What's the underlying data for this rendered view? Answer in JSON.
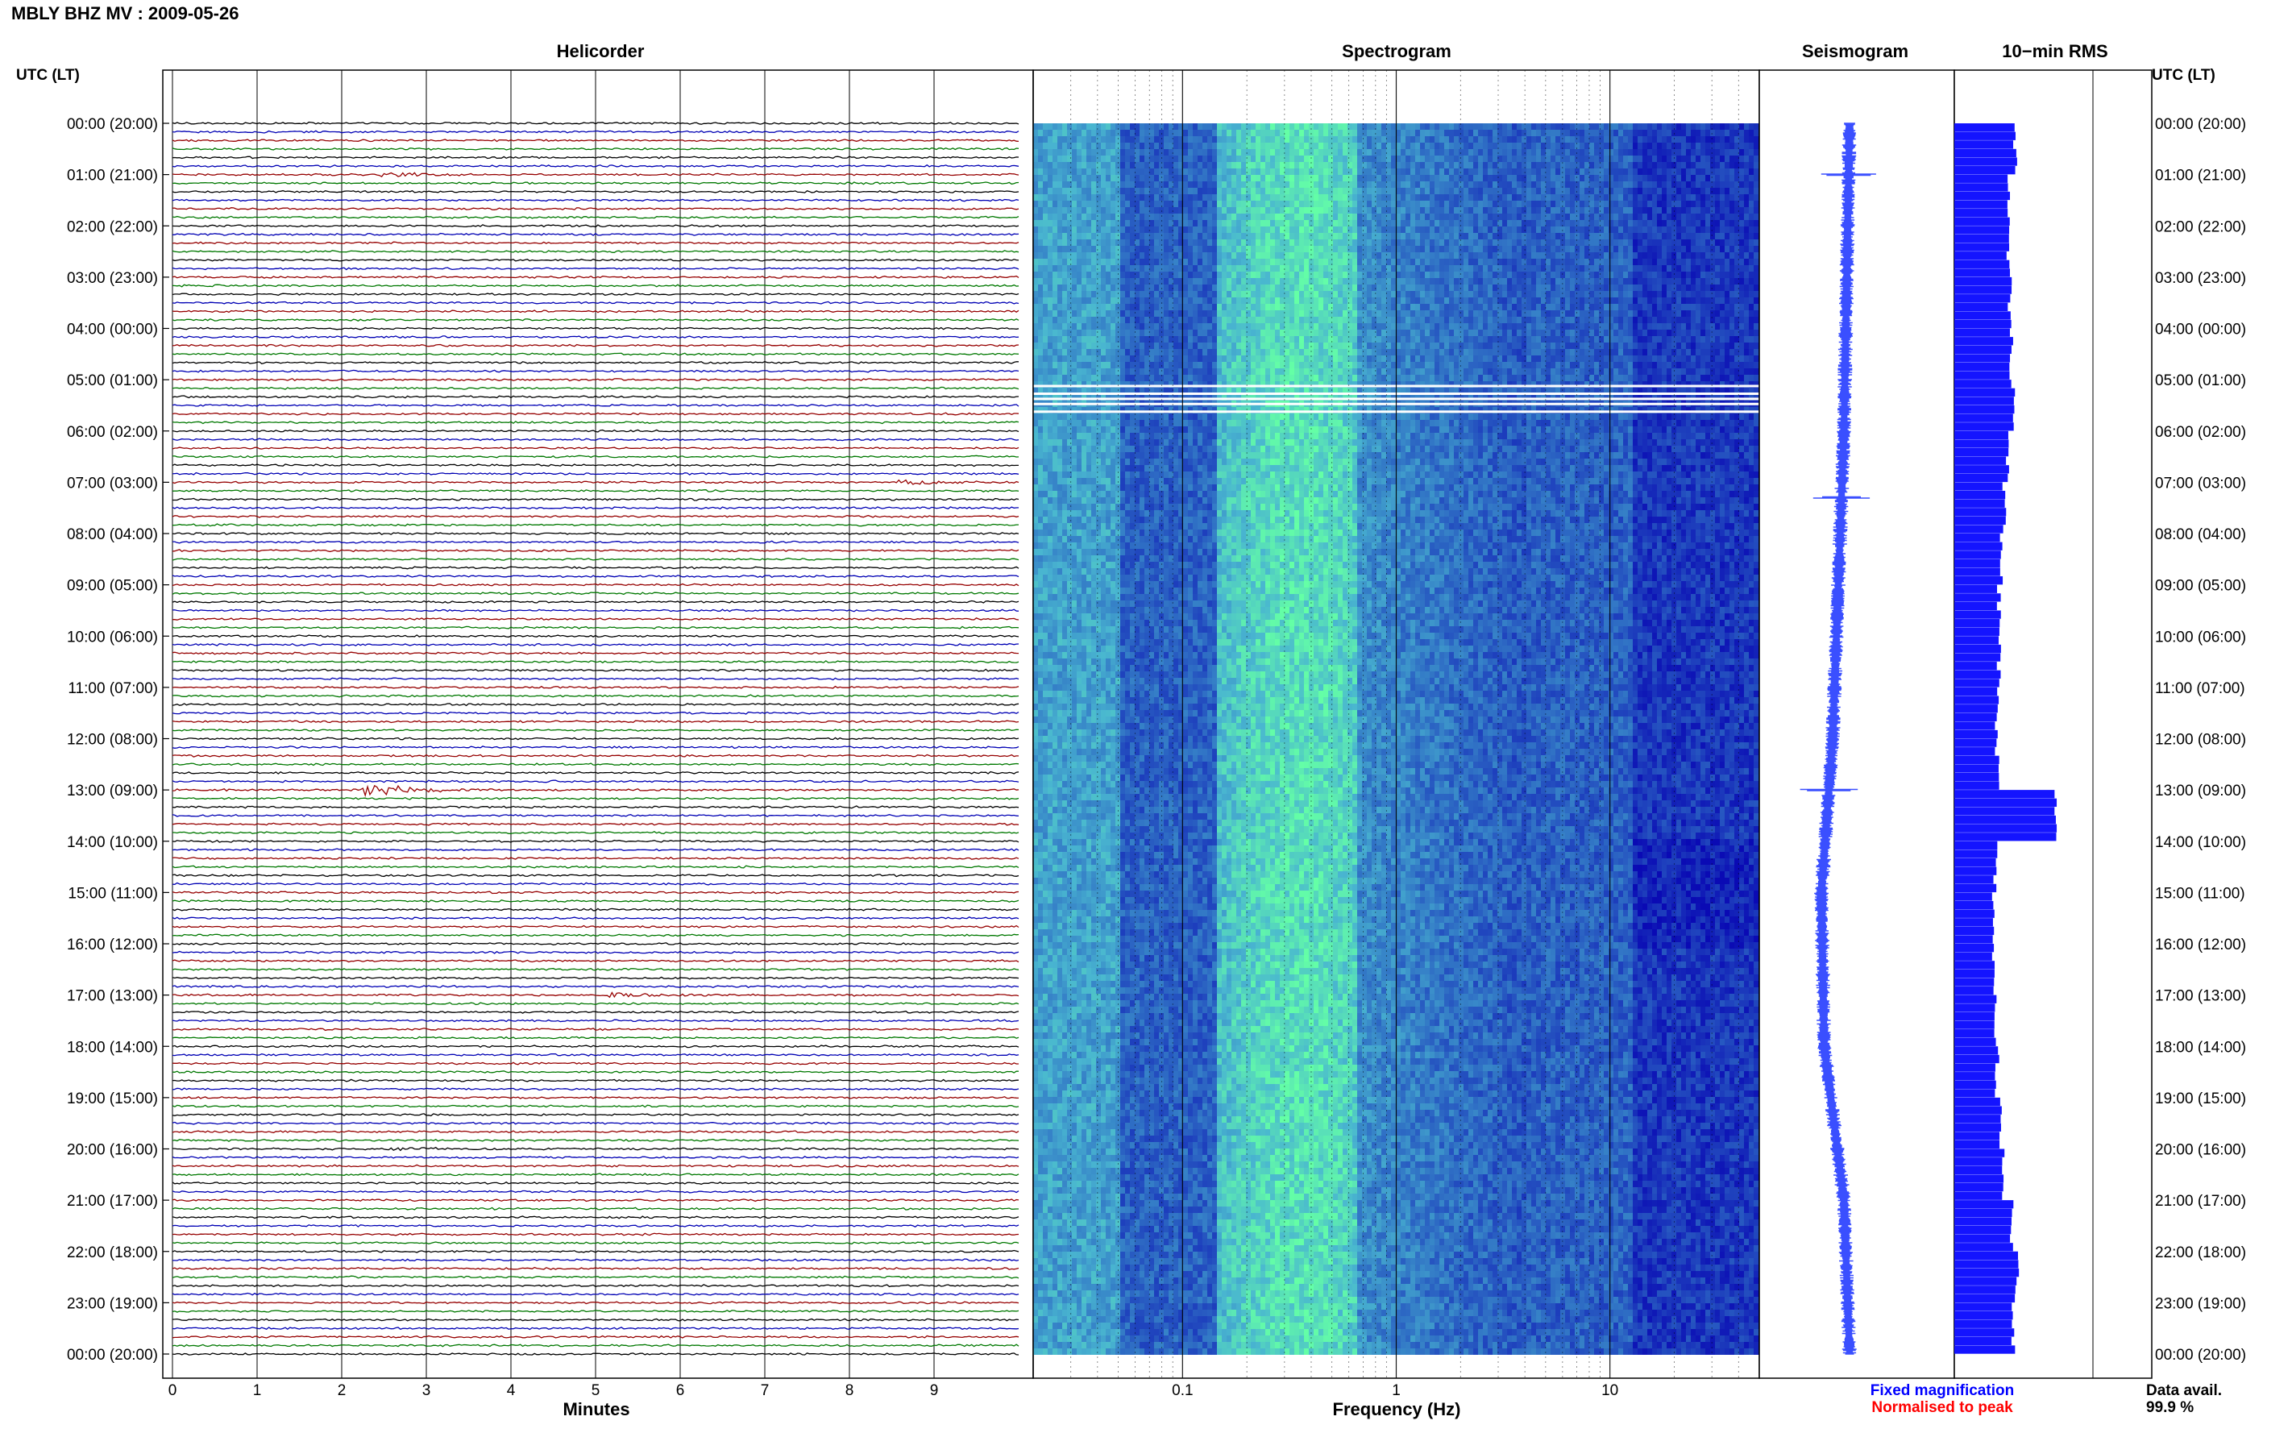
{
  "header": {
    "station_label": "MBLY BHZ MV : 2009-05-26"
  },
  "panels": {
    "helicorder_title": "Helicorder",
    "spectrogram_title": "Spectrogram",
    "seismogram_title": "Seismogram",
    "rms_title": "10−min RMS"
  },
  "axes": {
    "left_time_label": "UTC (LT)",
    "right_time_label": "UTC (LT)",
    "helicorder_xlabel": "Minutes",
    "spectrogram_xlabel": "Frequency (Hz)"
  },
  "legend": {
    "fixed_label": "Fixed magnification",
    "normalised_label": "Normalised to peak",
    "fixed_color": "#0000ff",
    "normalised_color": "#ff0000"
  },
  "data_availability": {
    "label": "Data avail.",
    "value": "99.9 %"
  },
  "colors": {
    "trace_palette": [
      "#000000",
      "#0000b4",
      "#960000",
      "#007800"
    ],
    "seismogram": "#3a4fff",
    "rms_bar": "#1414ff",
    "spectrogram_low": "#0a0ab4",
    "spectrogram_high": "#64ff96"
  },
  "chart_data": {
    "type": "heatmap",
    "time_ticks": [
      "00:00 (20:00)",
      "01:00 (21:00)",
      "02:00 (22:00)",
      "03:00 (23:00)",
      "04:00 (00:00)",
      "05:00 (01:00)",
      "06:00 (02:00)",
      "07:00 (03:00)",
      "08:00 (04:00)",
      "09:00 (05:00)",
      "10:00 (06:00)",
      "11:00 (07:00)",
      "12:00 (08:00)",
      "13:00 (09:00)",
      "14:00 (10:00)",
      "15:00 (11:00)",
      "16:00 (12:00)",
      "17:00 (13:00)",
      "18:00 (14:00)",
      "19:00 (15:00)",
      "20:00 (16:00)",
      "21:00 (17:00)",
      "22:00 (18:00)",
      "23:00 (19:00)",
      "00:00 (20:00)"
    ],
    "helicorder": {
      "xlabel": "Minutes",
      "xlim": [
        0,
        10
      ],
      "x_ticks": [
        0,
        1,
        2,
        3,
        4,
        5,
        6,
        7,
        8,
        9
      ],
      "lines_per_hour": 6,
      "events": [
        {
          "hour": 1,
          "minute": 2.5,
          "amplitude": 0.8
        },
        {
          "hour": 7,
          "minute": 8.6,
          "amplitude": 0.9
        },
        {
          "hour": 13,
          "minute": 2.3,
          "amplitude": 3.0
        },
        {
          "hour": 17,
          "minute": 5.2,
          "amplitude": 0.7
        },
        {
          "hour": 20,
          "minute": 2.5,
          "amplitude": 0.6
        }
      ],
      "gap_hour": 5.25
    },
    "spectrogram": {
      "xlabel": "Frequency (Hz)",
      "xscale": "log",
      "xlim": [
        0.02,
        50
      ],
      "x_tick_labels": [
        "0.1",
        "1",
        "10"
      ],
      "gap_hours": [
        5.1,
        5.25,
        5.35,
        5.45,
        5.6
      ]
    },
    "seismogram": {
      "offset_profile_hours": [
        0,
        3,
        6,
        9,
        12,
        15,
        18,
        21,
        24
      ],
      "offset_profile_values": [
        0.6,
        0.55,
        0.5,
        0.4,
        0.3,
        0.1,
        0.15,
        0.5,
        0.6
      ],
      "spike_hours": [
        1.0,
        7.3,
        13.0
      ]
    },
    "rms": {
      "hourly_relative_values": [
        0.9,
        0.7,
        0.7,
        0.75,
        0.8,
        0.85,
        0.7,
        0.6,
        0.5,
        0.45,
        0.45,
        0.4,
        0.4,
        2.0,
        0.35,
        0.3,
        0.3,
        0.35,
        0.4,
        0.5,
        0.55,
        0.8,
        0.95,
        0.85
      ]
    }
  }
}
